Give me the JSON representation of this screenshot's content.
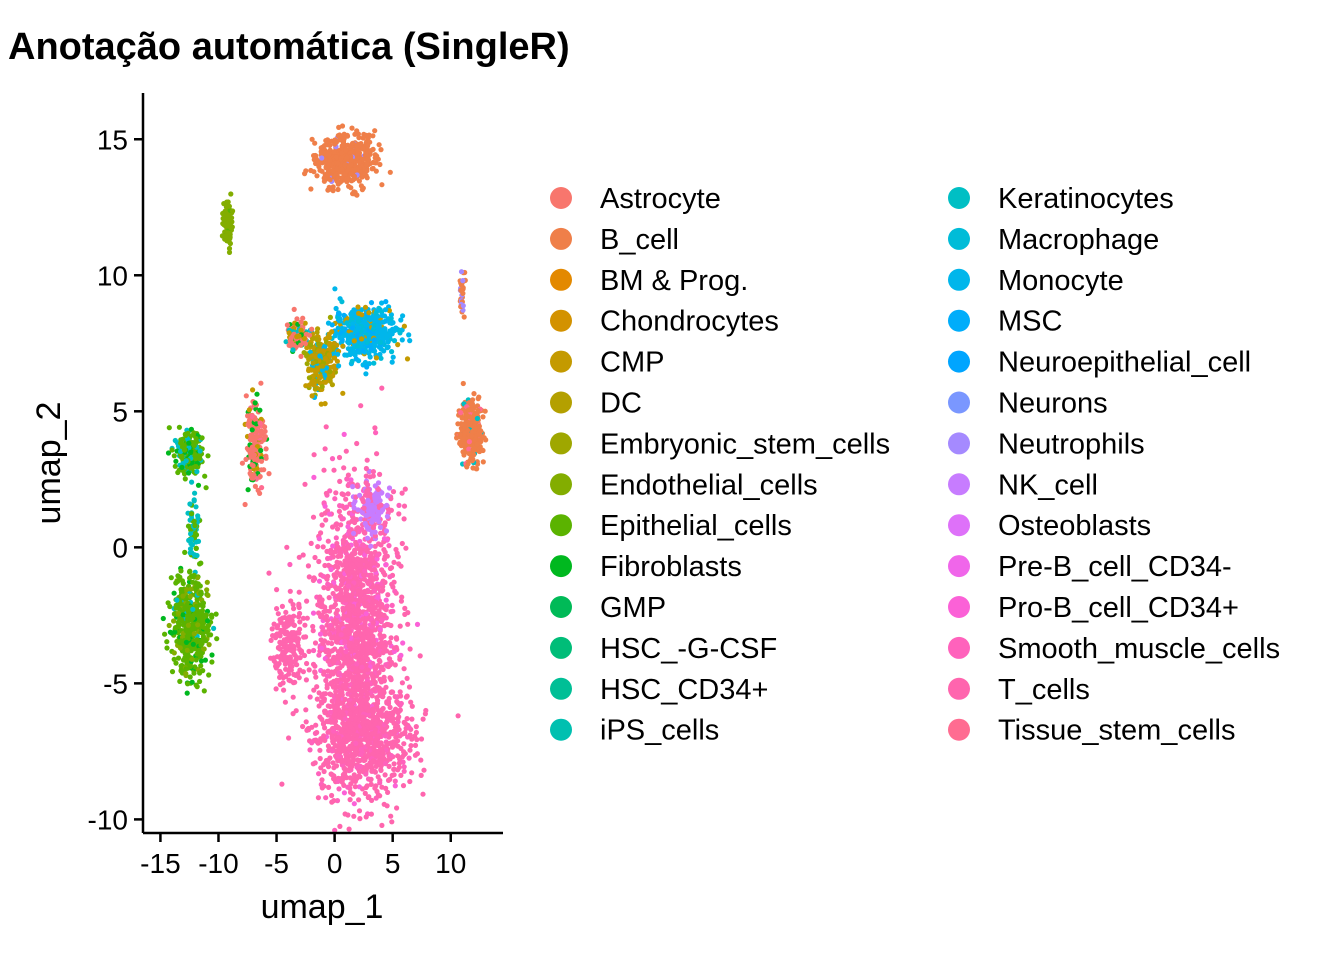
{
  "chart_data": {
    "type": "scatter",
    "title": "Anotação automática (SingleR)",
    "xlabel": "umap_1",
    "ylabel": "umap_2",
    "xlim": [
      -16.5,
      14.5
    ],
    "ylim": [
      -10.5,
      16.7
    ],
    "x_ticks": [
      -15,
      -10,
      -5,
      0,
      5,
      10
    ],
    "x_tick_labels": [
      "-15",
      "-10",
      "-5",
      "0",
      "5",
      "10"
    ],
    "y_ticks": [
      -10,
      -5,
      0,
      5,
      10,
      15
    ],
    "y_tick_labels": [
      "-10",
      "-5",
      "0",
      "5",
      "10",
      "15"
    ],
    "grid": false,
    "legend_position": "right",
    "legend_columns": 2,
    "series": [
      {
        "name": "Astrocyte",
        "color": "#F8766D"
      },
      {
        "name": "B_cell",
        "color": "#EF7F49"
      },
      {
        "name": "BM & Prog.",
        "color": "#E38900"
      },
      {
        "name": "Chondrocytes",
        "color": "#D39200"
      },
      {
        "name": "CMP",
        "color": "#C49A00"
      },
      {
        "name": "DC",
        "color": "#B4A000"
      },
      {
        "name": "Embryonic_stem_cells",
        "color": "#9FA700"
      },
      {
        "name": "Endothelial_cells",
        "color": "#83AD00"
      },
      {
        "name": "Epithelial_cells",
        "color": "#5BB300"
      },
      {
        "name": "Fibroblasts",
        "color": "#00B81F"
      },
      {
        "name": "GMP",
        "color": "#00BA57"
      },
      {
        "name": "HSC_-G-CSF",
        "color": "#00BD78"
      },
      {
        "name": "HSC_CD34+",
        "color": "#00BF96"
      },
      {
        "name": "iPS_cells",
        "color": "#00C0B0"
      },
      {
        "name": "Keratinocytes",
        "color": "#00BFC4"
      },
      {
        "name": "Macrophage",
        "color": "#00BCD8"
      },
      {
        "name": "Monocyte",
        "color": "#00B6EB"
      },
      {
        "name": "MSC",
        "color": "#00ADFA"
      },
      {
        "name": "Neuroepithelial_cell",
        "color": "#00A5FF"
      },
      {
        "name": "Neurons",
        "color": "#7A97FF"
      },
      {
        "name": "Neutrophils",
        "color": "#A58AFF"
      },
      {
        "name": "NK_cell",
        "color": "#C77CFF"
      },
      {
        "name": "Osteoblasts",
        "color": "#DE71F9"
      },
      {
        "name": "Pre-B_cell_CD34-",
        "color": "#F066EA"
      },
      {
        "name": "Pro-B_cell_CD34+",
        "color": "#FB61D7"
      },
      {
        "name": "Smooth_muscle_cells",
        "color": "#FF62BC"
      },
      {
        "name": "T_cells",
        "color": "#FF65AE"
      },
      {
        "name": "Tissue_stem_cells",
        "color": "#FF6C91"
      }
    ],
    "clusters": [
      {
        "label": "T_cells",
        "center": [
          1.8,
          -3.0
        ],
        "spread": [
          3.4,
          5.2
        ],
        "n": 1600,
        "mix": [
          [
            "T_cells",
            0.8
          ],
          [
            "Smooth_muscle_cells",
            0.12
          ],
          [
            "Pro-B_cell_CD34+",
            0.08
          ]
        ]
      },
      {
        "label": "T_cells",
        "center": [
          2.6,
          -7.0
        ],
        "spread": [
          4.2,
          2.0
        ],
        "n": 700,
        "mix": [
          [
            "T_cells",
            0.85
          ],
          [
            "Smooth_muscle_cells",
            0.15
          ]
        ]
      },
      {
        "label": "T_cells",
        "center": [
          -4.0,
          -3.5
        ],
        "spread": [
          1.4,
          1.6
        ],
        "n": 180,
        "mix": [
          [
            "T_cells",
            1.0
          ]
        ]
      },
      {
        "label": "NK_cell",
        "center": [
          3.2,
          1.5
        ],
        "spread": [
          1.3,
          1.0
        ],
        "n": 160,
        "mix": [
          [
            "NK_cell",
            0.75
          ],
          [
            "T_cells",
            0.25
          ]
        ]
      },
      {
        "label": "B_cell",
        "center": [
          1.0,
          14.2
        ],
        "spread": [
          2.6,
          1.0
        ],
        "n": 450,
        "mix": [
          [
            "B_cell",
            0.97
          ],
          [
            "Neutrophils",
            0.03
          ]
        ]
      },
      {
        "label": "B_cell",
        "center": [
          11.7,
          4.2
        ],
        "spread": [
          1.0,
          1.2
        ],
        "n": 260,
        "mix": [
          [
            "B_cell",
            0.9
          ],
          [
            "Tissue_stem_cells",
            0.05
          ],
          [
            "Keratinocytes",
            0.05
          ]
        ]
      },
      {
        "label": "B_cell",
        "center": [
          11.0,
          9.5
        ],
        "spread": [
          0.3,
          0.8
        ],
        "n": 30,
        "mix": [
          [
            "B_cell",
            0.6
          ],
          [
            "Neutrophils",
            0.4
          ]
        ]
      },
      {
        "label": "Monocyte",
        "center": [
          2.6,
          7.9
        ],
        "spread": [
          2.6,
          0.9
        ],
        "n": 500,
        "mix": [
          [
            "Monocyte",
            0.6
          ],
          [
            "Macrophage",
            0.2
          ],
          [
            "MSC",
            0.1
          ],
          [
            "CMP",
            0.1
          ]
        ]
      },
      {
        "label": "CMP",
        "center": [
          -1.2,
          6.8
        ],
        "spread": [
          1.2,
          1.0
        ],
        "n": 260,
        "mix": [
          [
            "CMP",
            0.5
          ],
          [
            "DC",
            0.2
          ],
          [
            "Embryonic_stem_cells",
            0.15
          ],
          [
            "Monocyte",
            0.15
          ]
        ]
      },
      {
        "label": "Astrocyte",
        "center": [
          -3.2,
          7.8
        ],
        "spread": [
          1.0,
          0.5
        ],
        "n": 120,
        "mix": [
          [
            "Astrocyte",
            0.4
          ],
          [
            "CMP",
            0.3
          ],
          [
            "Fibroblasts",
            0.15
          ],
          [
            "Keratinocytes",
            0.15
          ]
        ]
      },
      {
        "label": "Astrocyte",
        "center": [
          -6.8,
          3.8
        ],
        "spread": [
          0.8,
          1.6
        ],
        "n": 200,
        "mix": [
          [
            "Astrocyte",
            0.7
          ],
          [
            "Tissue_stem_cells",
            0.1
          ],
          [
            "Fibroblasts",
            0.1
          ],
          [
            "CMP",
            0.1
          ]
        ]
      },
      {
        "label": "Endothelial_cells",
        "center": [
          -9.2,
          11.9
        ],
        "spread": [
          0.4,
          0.8
        ],
        "n": 90,
        "mix": [
          [
            "Endothelial_cells",
            0.9
          ],
          [
            "Epithelial_cells",
            0.1
          ]
        ]
      },
      {
        "label": "Epithelial_cells",
        "center": [
          -12.6,
          3.4
        ],
        "spread": [
          1.2,
          0.8
        ],
        "n": 200,
        "mix": [
          [
            "Epithelial_cells",
            0.5
          ],
          [
            "Keratinocytes",
            0.3
          ],
          [
            "Fibroblasts",
            0.2
          ]
        ]
      },
      {
        "label": "Epithelial_cells",
        "center": [
          -12.4,
          -2.8
        ],
        "spread": [
          1.6,
          2.0
        ],
        "n": 450,
        "mix": [
          [
            "Epithelial_cells",
            0.7
          ],
          [
            "Endothelial_cells",
            0.15
          ],
          [
            "Fibroblasts",
            0.1
          ],
          [
            "Keratinocytes",
            0.05
          ]
        ]
      },
      {
        "label": "Keratinocytes",
        "center": [
          -12.1,
          0.6
        ],
        "spread": [
          0.4,
          1.2
        ],
        "n": 60,
        "mix": [
          [
            "Keratinocytes",
            0.6
          ],
          [
            "Epithelial_cells",
            0.4
          ]
        ]
      }
    ]
  }
}
